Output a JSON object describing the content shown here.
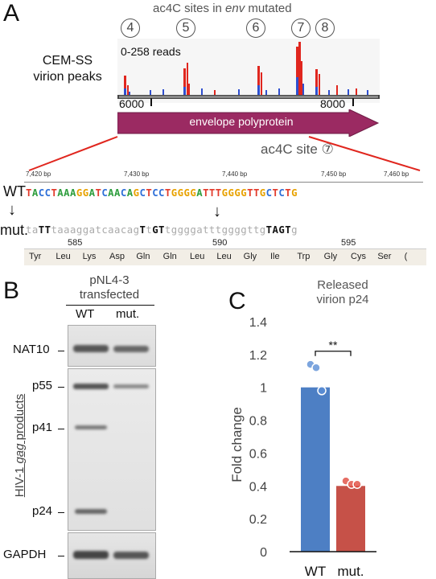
{
  "panelA": {
    "letter": "A",
    "title_prefix": "ac4C sites in ",
    "title_italic": "env",
    "title_suffix": " mutated",
    "site_numbers": [
      "4",
      "5",
      "6",
      "7",
      "8"
    ],
    "track_label_line1": "CEM-SS",
    "track_label_line2": "virion peaks",
    "read_range": "0-258 reads",
    "coord_left": "6000",
    "coord_right": "8000",
    "gene_label": "envelope polyprotein",
    "zoom_title": "ac4C site ⑦",
    "ruler_labels": [
      "7,420 bp",
      "7,430 bp",
      "7,440 bp",
      "7,450 bp",
      "7,460 bp"
    ],
    "wt_label": "WT",
    "mut_label": "mut.",
    "wt_sequence": "TACCTAAAGGATCAACAGCTCCTGGGGATTTGGGGTTGCTCTG",
    "mut_sequence": "taTTtaaaggatcaacagTtGTtggggatttggggttgTAGTg",
    "codon_numbers": [
      "585",
      "590",
      "595"
    ],
    "amino_acids": [
      "Tyr",
      "Leu",
      "Lys",
      "Asp",
      "Gln",
      "Gln",
      "Leu",
      "Leu",
      "Gly",
      "Ile",
      "Trp",
      "Gly",
      "Cys",
      "Ser",
      "("
    ],
    "colors": {
      "A": "#2e9e3e",
      "C": "#2d6fd8",
      "G": "#e8a200",
      "T": "#e23a2a",
      "mut_lower": "#aaaaaa",
      "mut_upper": "#111111",
      "gene_fill": "#9b2a62",
      "peak_red": "#e0261e",
      "peak_blue": "#2f4fcf"
    }
  },
  "panelB": {
    "letter": "B",
    "header_line1": "pNL4-3",
    "header_line2": "transfected",
    "lanes": [
      "WT",
      "mut."
    ],
    "bands": [
      "NAT10",
      "p55",
      "p41",
      "p24",
      "GAPDH"
    ],
    "side_label_prefix": "HIV-1 ",
    "side_label_italic": "gag",
    "side_label_suffix": " products"
  },
  "panelC": {
    "letter": "C",
    "title_line1": "Released",
    "title_line2": "virion p24",
    "ylabel": "Fold change",
    "significance": "**"
  },
  "chart_data": {
    "type": "bar",
    "title": "Released virion p24",
    "xlabel": "",
    "ylabel": "Fold change",
    "categories": [
      "WT",
      "mut."
    ],
    "values": [
      1.0,
      0.4
    ],
    "colors": [
      "#4d7fc4",
      "#c65148"
    ],
    "ylim": [
      0,
      1.4
    ],
    "yticks": [
      "0",
      "0.2",
      "0.4",
      "0.6",
      "0.8",
      "1",
      "1.2",
      "1.4"
    ],
    "points": {
      "WT": [
        1.14,
        1.12,
        0.98
      ],
      "mut.": [
        0.43,
        0.41,
        0.41
      ]
    },
    "significance": "**"
  }
}
